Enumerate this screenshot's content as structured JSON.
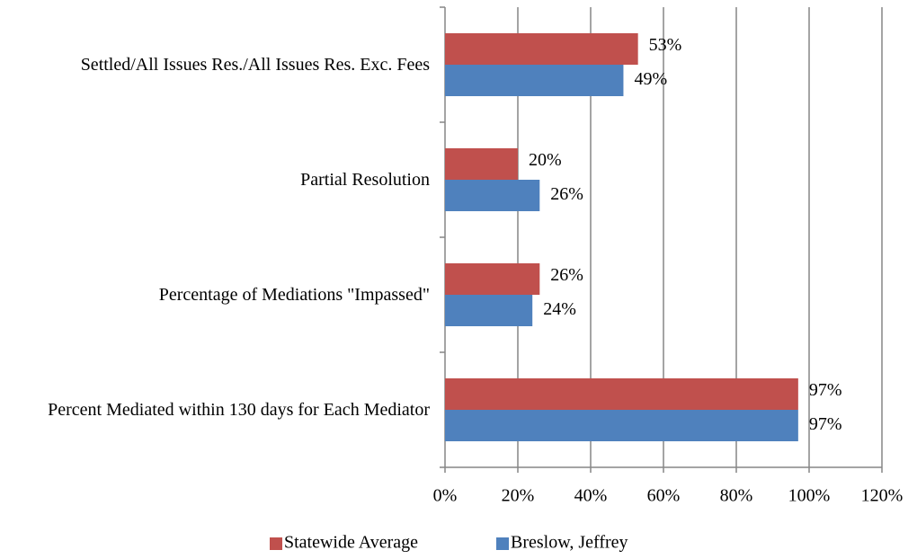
{
  "chart_data": {
    "type": "bar",
    "orientation": "horizontal",
    "categories": [
      "Settled/All Issues Res./All Issues Res. Exc. Fees",
      "Partial Resolution",
      "Percentage of Mediations \"Impassed\"",
      "Percent Mediated within 130 days for Each Mediator"
    ],
    "series": [
      {
        "name": "Statewide Average",
        "color": "#c0504d",
        "values": [
          53,
          20,
          26,
          97
        ],
        "value_labels": [
          "53%",
          "20%",
          "26%",
          "97%"
        ]
      },
      {
        "name": "Breslow, Jeffrey",
        "color": "#4f81bd",
        "values": [
          49,
          26,
          24,
          97
        ],
        "value_labels": [
          "49%",
          "26%",
          "24%",
          "97%"
        ]
      }
    ],
    "xlim": [
      0,
      120
    ],
    "xticks": [
      {
        "value": 0,
        "label": "0%"
      },
      {
        "value": 20,
        "label": "20%"
      },
      {
        "value": 40,
        "label": "40%"
      },
      {
        "value": 60,
        "label": "60%"
      },
      {
        "value": 80,
        "label": "80%"
      },
      {
        "value": 100,
        "label": "100%"
      },
      {
        "value": 120,
        "label": "120%"
      }
    ],
    "grid": true,
    "legend": "bottom"
  }
}
